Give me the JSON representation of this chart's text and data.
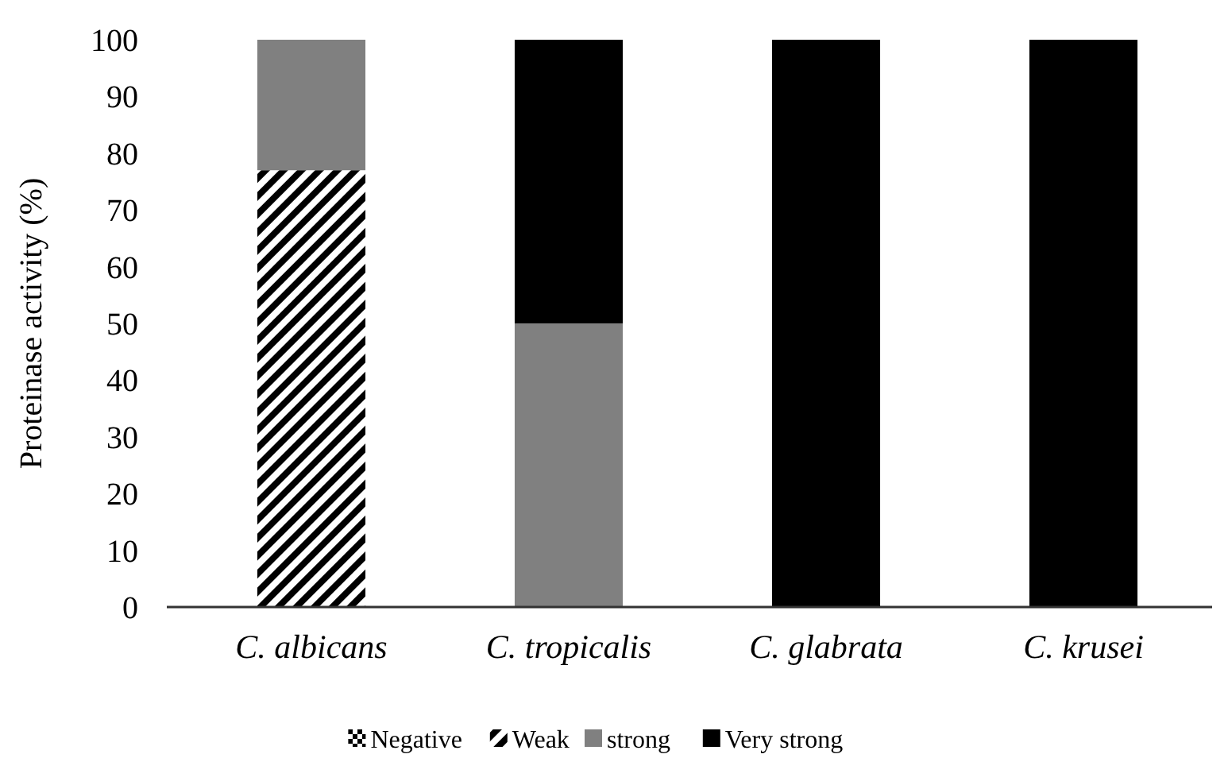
{
  "chart_data": {
    "type": "bar",
    "stacked": true,
    "ylabel": "Proteinase  activity  (%)",
    "categories": [
      "C. albicans",
      "C. tropicalis",
      "C. glabrata",
      "C. krusei"
    ],
    "ylim": [
      0,
      100
    ],
    "yticks": [
      0,
      10,
      20,
      30,
      40,
      50,
      60,
      70,
      80,
      90,
      100
    ],
    "legend": "bottom",
    "series": [
      {
        "name": "Negative",
        "color": "#000000",
        "values": [
          0,
          0,
          0,
          0
        ]
      },
      {
        "name": "Weak",
        "color": "#000000",
        "values": [
          77,
          0,
          0,
          0
        ]
      },
      {
        "name": "strong",
        "color": "#808080",
        "values": [
          23,
          50,
          0,
          0
        ]
      },
      {
        "name": "Very strong",
        "color": "#000000",
        "values": [
          0,
          50,
          100,
          100
        ]
      }
    ]
  }
}
